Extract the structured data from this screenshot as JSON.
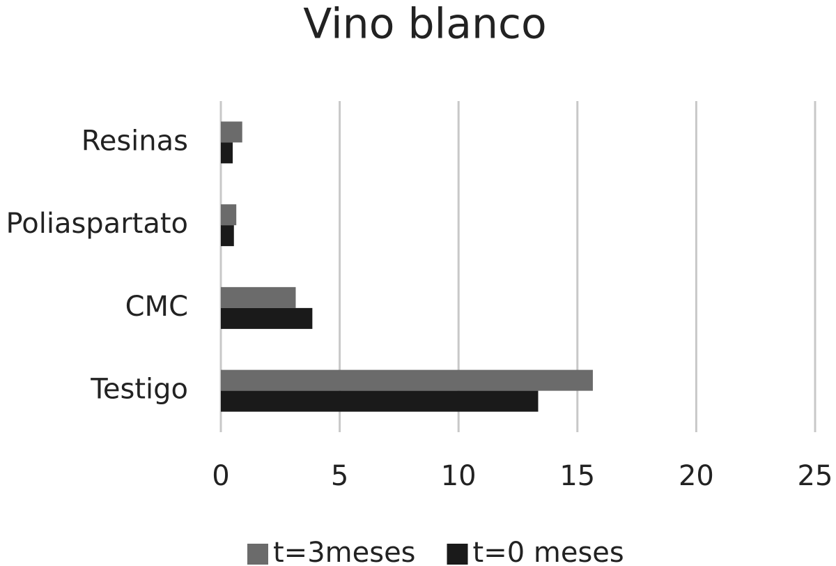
{
  "chart_data": {
    "type": "barh",
    "title": "Vino blanco",
    "categories": [
      "Testigo",
      "CMC",
      "Poliaspartato",
      "Resinas"
    ],
    "series": [
      {
        "name": "t=3meses",
        "color": "#6b6b6b",
        "values": [
          15.65,
          3.15,
          0.65,
          0.9
        ]
      },
      {
        "name": "t=0 meses",
        "color": "#1a1a1a",
        "values": [
          13.35,
          3.85,
          0.55,
          0.5
        ]
      }
    ],
    "xlim": [
      0,
      25
    ],
    "xticks": [
      0,
      5,
      10,
      15,
      20,
      25
    ],
    "grid": true,
    "legend": "bottom"
  }
}
